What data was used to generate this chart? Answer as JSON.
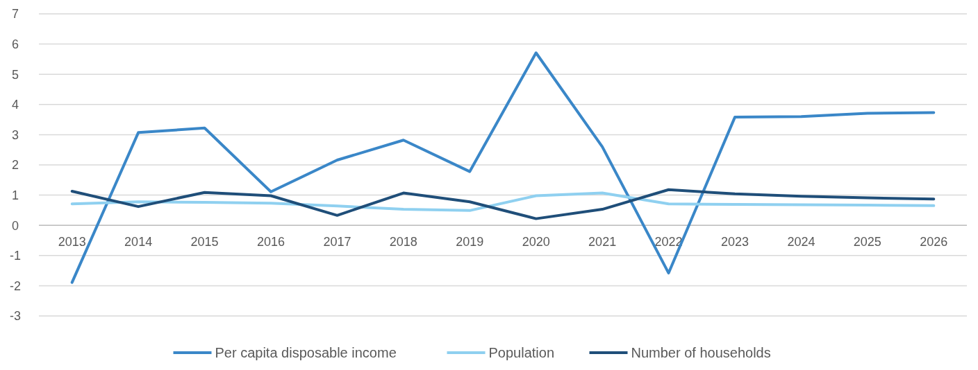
{
  "chart_data": {
    "type": "line",
    "categories": [
      "2013",
      "2014",
      "2015",
      "2016",
      "2017",
      "2018",
      "2019",
      "2020",
      "2021",
      "2022",
      "2023",
      "2024",
      "2025",
      "2026"
    ],
    "series": [
      {
        "name": "Per capita disposable income",
        "color": "#3a87c8",
        "values": [
          -1.89,
          3.07,
          3.22,
          1.11,
          2.16,
          2.82,
          1.78,
          5.71,
          2.6,
          -1.58,
          3.58,
          3.6,
          3.71,
          3.73
        ]
      },
      {
        "name": "Population",
        "color": "#8fd0f0",
        "values": [
          0.71,
          0.78,
          0.76,
          0.73,
          0.64,
          0.53,
          0.49,
          0.98,
          1.07,
          0.71,
          0.69,
          0.68,
          0.67,
          0.65
        ]
      },
      {
        "name": "Number of households",
        "color": "#1f4e79",
        "values": [
          1.13,
          0.62,
          1.09,
          0.98,
          0.33,
          1.07,
          0.78,
          0.22,
          0.53,
          1.18,
          1.04,
          0.96,
          0.91,
          0.87
        ]
      }
    ],
    "ylim": [
      -3,
      7
    ],
    "yticks": [
      -3,
      -2,
      -1,
      0,
      1,
      2,
      3,
      4,
      5,
      6,
      7
    ],
    "grid": "y",
    "legend": "bottom",
    "marker": "none",
    "line_style": "solid"
  }
}
